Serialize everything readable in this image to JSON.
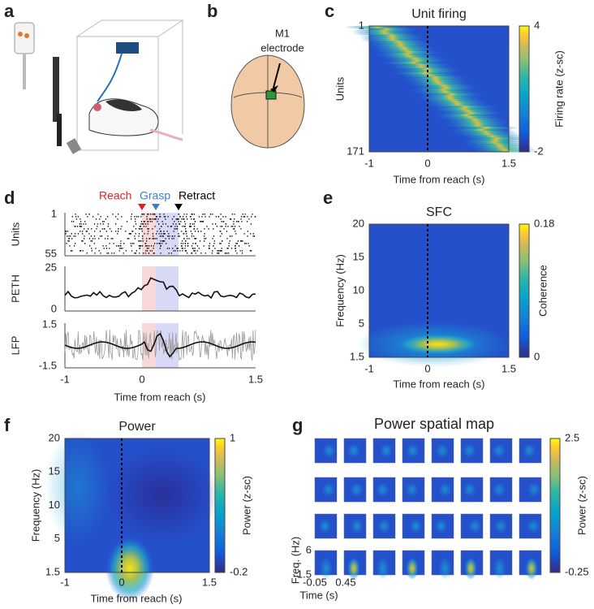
{
  "a": {
    "label": "a"
  },
  "b": {
    "label": "b",
    "annotation": [
      "M1",
      "electrode"
    ]
  },
  "c": {
    "label": "c",
    "title": "Unit firing",
    "y_label": "Units",
    "x_label": "Time from reach (s)",
    "x_ticks": [
      "-1",
      "0",
      "1.5"
    ],
    "y_ticks": [
      "1",
      "171"
    ],
    "colorbar_label": "Firing rate (z-sc)",
    "colorbar_ticks": [
      "4",
      "-2"
    ]
  },
  "d": {
    "label": "d",
    "events": [
      "Reach",
      "Grasp",
      "Retract"
    ],
    "rows": [
      {
        "name": "Units",
        "y_ticks": [
          "1",
          "55"
        ]
      },
      {
        "name": "PETH",
        "y_ticks": [
          "25",
          "0"
        ]
      },
      {
        "name": "LFP",
        "y_ticks": [
          "1.5",
          "-1.5"
        ]
      }
    ],
    "x_ticks": [
      "-1",
      "0",
      "1.5"
    ],
    "x_label": "Time from reach (s)"
  },
  "e": {
    "label": "e",
    "title": "SFC",
    "y_label": "Frequency (Hz)",
    "x_label": "Time from reach (s)",
    "x_ticks": [
      "-1",
      "0",
      "1.5"
    ],
    "y_ticks": [
      "20",
      "15",
      "10",
      "5",
      "1.5"
    ],
    "colorbar_label": "Coherence",
    "colorbar_ticks": [
      "0.18",
      "0"
    ]
  },
  "f": {
    "label": "f",
    "title": "Power",
    "y_label": "Frequency (Hz)",
    "x_label": "Time from reach (s)",
    "x_ticks": [
      "-1",
      "0",
      "1.5"
    ],
    "y_ticks": [
      "20",
      "15",
      "10",
      "5",
      "1.5"
    ],
    "colorbar_label": "Power (z-sc)",
    "colorbar_ticks": [
      "1",
      "-0.2"
    ]
  },
  "g": {
    "label": "g",
    "title": "Power spatial map",
    "y_label": "Freq. (Hz)",
    "x_label": "Time (s)",
    "x_ticks": [
      "-0.05",
      "0.45"
    ],
    "y_ticks": [
      "6",
      "1.5"
    ],
    "colorbar_label": "Power (z-sc)",
    "colorbar_ticks": [
      "2.5",
      "-0.25"
    ]
  }
}
